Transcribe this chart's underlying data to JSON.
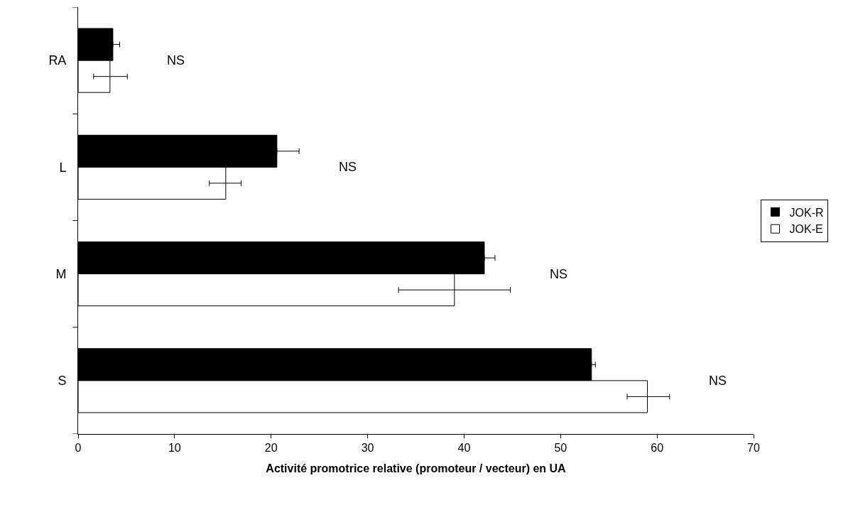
{
  "chart_data": {
    "type": "bar",
    "orientation": "horizontal",
    "xlabel": "Activité promotrice relative (promoteur / vecteur) en UA",
    "categories": [
      "RA",
      "L",
      "M",
      "S"
    ],
    "series": [
      {
        "name": "JOK-R",
        "color": "#000000",
        "values": [
          3.6,
          20.6,
          42.1,
          53.2
        ],
        "errors": [
          [
            3.6,
            4.3
          ],
          [
            20.6,
            22.9
          ],
          [
            42.1,
            43.2
          ],
          [
            53.2,
            53.6
          ]
        ]
      },
      {
        "name": "JOK-E",
        "color": "#ffffff",
        "values": [
          3.3,
          15.3,
          39.0,
          59.0
        ],
        "errors": [
          [
            1.6,
            5.1
          ],
          [
            13.6,
            16.9
          ],
          [
            33.2,
            44.8
          ],
          [
            56.9,
            61.3
          ]
        ]
      }
    ],
    "xlim": [
      0,
      70
    ],
    "xticks": [
      0,
      10,
      20,
      30,
      40,
      50,
      60,
      70
    ],
    "annotations": [
      "NS",
      "NS",
      "NS",
      "NS"
    ],
    "legend": "right",
    "grid": false
  }
}
